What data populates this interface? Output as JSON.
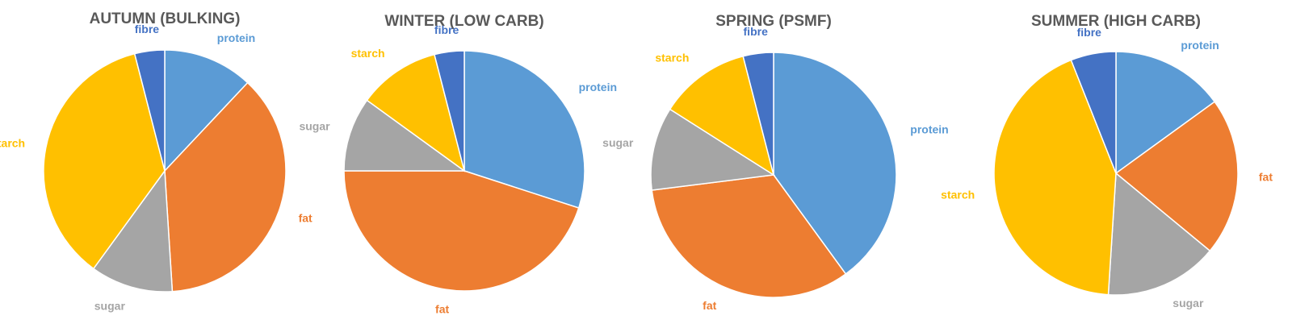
{
  "chart_data": [
    {
      "type": "pie",
      "title": "AUTUMN (BULKING)",
      "slices": [
        {
          "label": "protein",
          "value": 12,
          "color": "#5B9BD5"
        },
        {
          "label": "fat",
          "value": 37,
          "color": "#ED7D31"
        },
        {
          "label": "sugar",
          "value": 11,
          "color": "#A5A5A5"
        },
        {
          "label": "starch",
          "value": 36,
          "color": "#FFC000"
        },
        {
          "label": "fibre",
          "value": 4,
          "color": "#4472C4"
        }
      ]
    },
    {
      "type": "pie",
      "title": "WINTER (LOW CARB)",
      "slices": [
        {
          "label": "protein",
          "value": 30,
          "color": "#5B9BD5"
        },
        {
          "label": "fat",
          "value": 45,
          "color": "#ED7D31"
        },
        {
          "label": "sugar",
          "value": 10,
          "color": "#A5A5A5"
        },
        {
          "label": "starch",
          "value": 11,
          "color": "#FFC000"
        },
        {
          "label": "fibre",
          "value": 4,
          "color": "#4472C4"
        }
      ]
    },
    {
      "type": "pie",
      "title": "SPRING (PSMF)",
      "slices": [
        {
          "label": "protein",
          "value": 40,
          "color": "#5B9BD5"
        },
        {
          "label": "fat",
          "value": 33,
          "color": "#ED7D31"
        },
        {
          "label": "sugar",
          "value": 11,
          "color": "#A5A5A5"
        },
        {
          "label": "starch",
          "value": 12,
          "color": "#FFC000"
        },
        {
          "label": "fibre",
          "value": 4,
          "color": "#4472C4"
        }
      ]
    },
    {
      "type": "pie",
      "title": "SUMMER (HIGH CARB)",
      "slices": [
        {
          "label": "protein",
          "value": 15,
          "color": "#5B9BD5"
        },
        {
          "label": "fat",
          "value": 21,
          "color": "#ED7D31"
        },
        {
          "label": "sugar",
          "value": 15,
          "color": "#A5A5A5"
        },
        {
          "label": "starch",
          "value": 43,
          "color": "#FFC000"
        },
        {
          "label": "fibre",
          "value": 6,
          "color": "#4472C4"
        }
      ]
    }
  ]
}
